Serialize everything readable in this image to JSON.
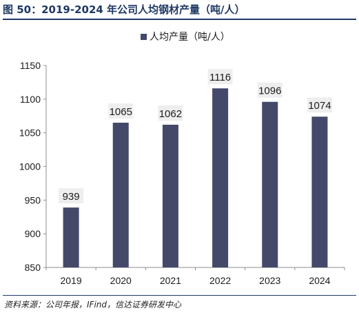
{
  "figure": {
    "title": "图 50：2019-2024 年公司人均钢材产量（吨/人）",
    "source": "资料来源：公司年报，IFind，信达证券研发中心"
  },
  "colors": {
    "bar": "#44496a",
    "label_bg": "#eeeeee",
    "accent": "#1f3864"
  },
  "chart_data": {
    "type": "bar",
    "title": "",
    "xlabel": "",
    "ylabel": "",
    "categories": [
      "2019",
      "2020",
      "2021",
      "2022",
      "2023",
      "2024"
    ],
    "series": [
      {
        "name": "人均产量（吨/人）",
        "values": [
          939,
          1065,
          1062,
          1116,
          1096,
          1074
        ]
      }
    ],
    "ylim": [
      850,
      1150
    ],
    "yticks": [
      850,
      900,
      950,
      1000,
      1050,
      1100,
      1150
    ],
    "grid": false,
    "legend": "top-center",
    "data_labels": true
  }
}
